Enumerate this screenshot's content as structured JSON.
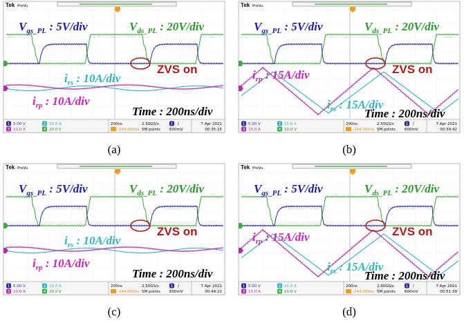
{
  "panels": [
    {
      "caption": "(a)",
      "header": {
        "brand": "Tek",
        "mode": "PreVu"
      },
      "labels": {
        "vgs": {
          "main": "V",
          "sub": "gs_PL",
          "rest": " : 5V/div"
        },
        "vds": {
          "main": "V",
          "sub": "ds_PL",
          "rest": " : 20V/div"
        },
        "zvs": "ZVS on",
        "irs": {
          "main": "i",
          "sub": "rs",
          "rest": " : 10A/div"
        },
        "irp": {
          "main": "i",
          "sub": "rp",
          "rest": " : 10A/div"
        },
        "time": "Time : 200ns/div"
      },
      "status": {
        "ch1": {
          "num": "1",
          "scale": "5.00 V"
        },
        "ch2": {
          "num": "2",
          "scale": "10.0 A"
        },
        "ch3": {
          "num": "3",
          "scale": "10.0 A"
        },
        "ch4": {
          "num": "4",
          "scale": "20.0 V"
        },
        "timebase": "200ns",
        "rate": "2.50GS/s",
        "points": "5M points",
        "delay": "-244.000ns",
        "trig_ch": "1",
        "slope": "/",
        "level": "600mV",
        "date": "7 Apr 2021",
        "clock": "00:35:15"
      }
    },
    {
      "caption": "(b)",
      "header": {
        "brand": "Tek",
        "mode": "PreVu"
      },
      "labels": {
        "vgs": {
          "main": "V",
          "sub": "gs_PL",
          "rest": " : 5V/div"
        },
        "vds": {
          "main": "V",
          "sub": "ds_PL",
          "rest": " : 20V/div"
        },
        "zvs": "ZVS on",
        "irs": {
          "main": "i",
          "sub": "rs",
          "rest": " : 15A/div"
        },
        "irp": {
          "main": "i",
          "sub": "rp",
          "rest": " : 15A/div"
        },
        "time": "Time : 200ns/div"
      },
      "status": {
        "ch1": {
          "num": "1",
          "scale": "5.00 V"
        },
        "ch2": {
          "num": "2",
          "scale": "15.0 A"
        },
        "ch3": {
          "num": "3",
          "scale": "15.0 A"
        },
        "ch4": {
          "num": "4",
          "scale": "20.0 V"
        },
        "timebase": "200ns",
        "rate": "2.50GS/s",
        "points": "5M points",
        "delay": "-244.000ns",
        "trig_ch": "1",
        "slope": "/",
        "level": "600mV",
        "date": "7 Apr 2021",
        "clock": "00:39:42"
      }
    },
    {
      "caption": "(c)",
      "header": {
        "brand": "Tek",
        "mode": "PreVu"
      },
      "labels": {
        "vgs": {
          "main": "V",
          "sub": "gs_PL",
          "rest": " : 5V/div"
        },
        "vds": {
          "main": "V",
          "sub": "ds_PL",
          "rest": " : 20V/div"
        },
        "zvs": "ZVS on",
        "irs": {
          "main": "i",
          "sub": "rs",
          "rest": " : 10A/div"
        },
        "irp": {
          "main": "i",
          "sub": "rp",
          "rest": " : 10A/div"
        },
        "time": "Time : 200ns/div"
      },
      "status": {
        "ch1": {
          "num": "1",
          "scale": "5.00 V"
        },
        "ch2": {
          "num": "2",
          "scale": "10.0 A"
        },
        "ch3": {
          "num": "3",
          "scale": "10.0 A"
        },
        "ch4": {
          "num": "4",
          "scale": "20.0 V"
        },
        "timebase": "200ns",
        "rate": "2.50GS/s",
        "points": "5M points",
        "delay": "-244.000ns",
        "trig_ch": "1",
        "slope": "/",
        "level": "600mV",
        "date": "7 Apr 2021",
        "clock": "00:49:22"
      }
    },
    {
      "caption": "(d)",
      "header": {
        "brand": "Tek",
        "mode": "PreVu"
      },
      "labels": {
        "vgs": {
          "main": "V",
          "sub": "gs_PL",
          "rest": " : 5V/div"
        },
        "vds": {
          "main": "V",
          "sub": "ds_PL",
          "rest": " : 20V/div"
        },
        "zvs": "ZVS on",
        "irs": {
          "main": "i",
          "sub": "rs",
          "rest": " : 15A/div"
        },
        "irp": {
          "main": "i",
          "sub": "rp",
          "rest": " : 15A/div"
        },
        "time": "Time : 200ns/div"
      },
      "status": {
        "ch1": {
          "num": "1",
          "scale": "5.00 V"
        },
        "ch2": {
          "num": "2",
          "scale": "15.0 A"
        },
        "ch3": {
          "num": "3",
          "scale": "15.0 A"
        },
        "ch4": {
          "num": "4",
          "scale": "20.0 V"
        },
        "timebase": "200ns",
        "rate": "2.50GS/s",
        "points": "5M points",
        "delay": "-244.000ns",
        "trig_ch": "1",
        "slope": "/",
        "level": "600mV",
        "date": "7 Apr 2021",
        "clock": "00:51:39"
      }
    }
  ]
}
